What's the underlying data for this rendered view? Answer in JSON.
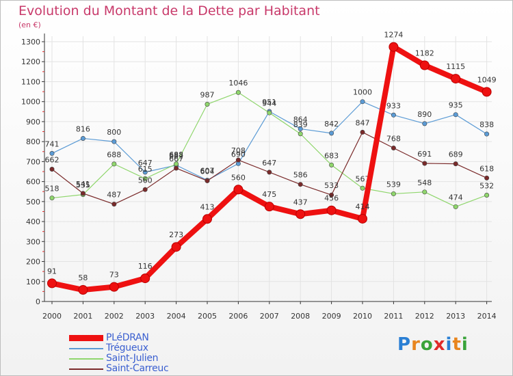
{
  "header": {
    "title": "Evolution du Montant de la Dette par Habitant",
    "subtitle": "(en €)"
  },
  "brand": {
    "letters": [
      "P",
      "r",
      "o",
      "x",
      "i",
      "t",
      "i"
    ],
    "colors": [
      "#2a7fd4",
      "#e8851e",
      "#3aa33a",
      "#e02a2a",
      "#2a7fd4",
      "#e8851e",
      "#3aa33a"
    ]
  },
  "colors": {
    "title": "#c8396a",
    "axis": "#333333",
    "grid": "#e3e3e3"
  },
  "chart_data": {
    "type": "line",
    "title": "Evolution du Montant de la Dette par Habitant",
    "subtitle": "(en €)",
    "x": [
      "2000",
      "2001",
      "2002",
      "2003",
      "2004",
      "2005",
      "2006",
      "2007",
      "2008",
      "2009",
      "2010",
      "2011",
      "2012",
      "2013",
      "2014"
    ],
    "ylim": [
      0,
      1300
    ],
    "yticks": [
      0,
      100,
      200,
      300,
      400,
      500,
      600,
      700,
      800,
      900,
      1000,
      1100,
      1200,
      1300
    ],
    "grid": true,
    "legend_position": "bottom-left",
    "series": [
      {
        "name": "Trégueux",
        "color": "#5b9bd5",
        "values": [
          741,
          816,
          800,
          647,
          682,
          607,
          690,
          951,
          864,
          842,
          1000,
          933,
          890,
          935,
          838
        ]
      },
      {
        "name": "Saint-Julien",
        "color": "#8fd66c",
        "values": [
          518,
          535,
          688,
          615,
          688,
          987,
          1046,
          944,
          839,
          683,
          567,
          539,
          548,
          474,
          532
        ]
      },
      {
        "name": "Saint-Carreuc",
        "color": "#7a2a2a",
        "values": [
          662,
          541,
          487,
          560,
          667,
          604,
          708,
          647,
          586,
          533,
          847,
          768,
          691,
          689,
          618
        ]
      },
      {
        "name": "PLéDRAN",
        "color": "#ee1111",
        "values": [
          91,
          58,
          73,
          116,
          273,
          413,
          560,
          475,
          437,
          456,
          414,
          1274,
          1182,
          1115,
          1049
        ]
      }
    ],
    "legend_order": [
      "PLéDRAN",
      "Trégueux",
      "Saint-Julien",
      "Saint-Carreuc"
    ]
  }
}
